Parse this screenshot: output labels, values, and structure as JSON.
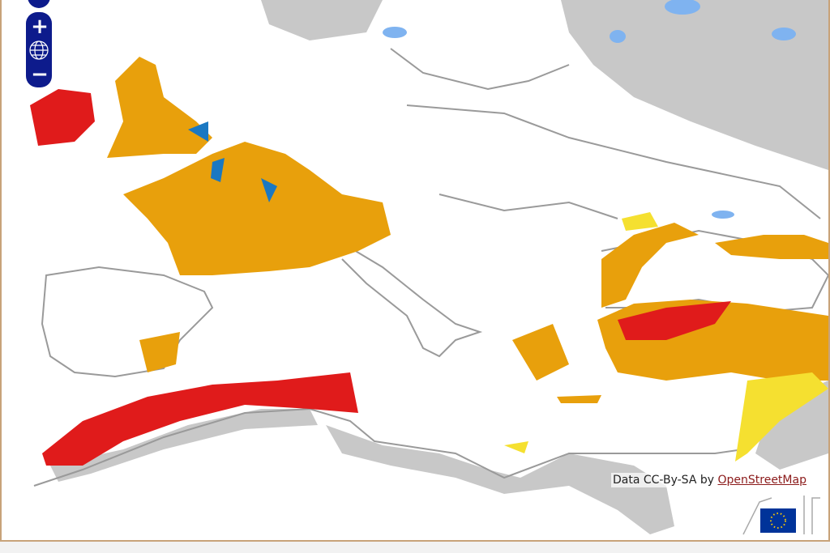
{
  "attribution": {
    "text": "Data CC-By-SA by",
    "link": "OpenStreetMap"
  },
  "controls": {
    "zoom_in": "+",
    "zoom_out": "−"
  }
}
